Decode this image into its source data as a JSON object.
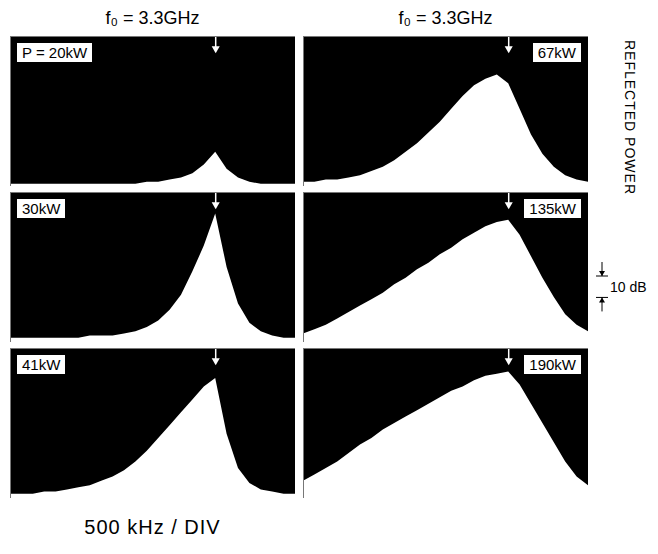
{
  "column_titles": [
    "f₀ = 3.3GHz",
    "f₀ = 3.3GHz"
  ],
  "ylabel": "REFLECTED POWER",
  "scale_bar": {
    "value": 10,
    "label": "10 dB"
  },
  "xlabel": "500 kHz / DIV",
  "chart_data": [
    {
      "type": "area",
      "title": "P = 20kW",
      "color": "#ffffff",
      "tick_labels": false,
      "xlim": [
        -3600,
        1400
      ],
      "ylim": [
        0,
        70
      ],
      "x": [
        -3600,
        -3400,
        -3200,
        -3000,
        -2800,
        -2600,
        -2400,
        -2200,
        -2000,
        -1800,
        -1600,
        -1400,
        -1200,
        -1000,
        -800,
        -600,
        -400,
        -200,
        0,
        200,
        400,
        600,
        800,
        1000,
        1200,
        1400
      ],
      "values": [
        1,
        1,
        1,
        1,
        1,
        1,
        1,
        1,
        1,
        1,
        1,
        1,
        2,
        2,
        3,
        4,
        6,
        10,
        16,
        8,
        4,
        2,
        1,
        1,
        1,
        1
      ]
    },
    {
      "type": "area",
      "title": "30kW",
      "color": "#ffffff",
      "tick_labels": false,
      "xlim": [
        -3600,
        1400
      ],
      "ylim": [
        0,
        70
      ],
      "x": [
        -3600,
        -3400,
        -3200,
        -3000,
        -2800,
        -2600,
        -2400,
        -2200,
        -2000,
        -1800,
        -1600,
        -1400,
        -1200,
        -1000,
        -800,
        -600,
        -400,
        -200,
        0,
        200,
        400,
        600,
        800,
        1000,
        1200,
        1400
      ],
      "values": [
        2,
        2,
        2,
        2,
        2,
        2,
        2,
        3,
        3,
        3,
        4,
        5,
        7,
        10,
        15,
        22,
        33,
        45,
        60,
        35,
        18,
        9,
        5,
        3,
        2,
        2
      ]
    },
    {
      "type": "area",
      "title": "41kW",
      "color": "#ffffff",
      "tick_labels": false,
      "xlim": [
        -3600,
        1400
      ],
      "ylim": [
        0,
        70
      ],
      "x": [
        -3600,
        -3400,
        -3200,
        -3000,
        -2800,
        -2600,
        -2400,
        -2200,
        -2000,
        -1800,
        -1600,
        -1400,
        -1200,
        -1000,
        -800,
        -600,
        -400,
        -200,
        0,
        200,
        400,
        600,
        800,
        1000,
        1200,
        1400
      ],
      "values": [
        2,
        2,
        2,
        3,
        3,
        4,
        5,
        6,
        8,
        10,
        13,
        17,
        22,
        28,
        34,
        40,
        46,
        52,
        56,
        30,
        14,
        7,
        4,
        3,
        2,
        2
      ]
    },
    {
      "type": "area",
      "title": "67kW",
      "color": "#ffffff",
      "tick_labels": false,
      "xlim": [
        -3600,
        1400
      ],
      "ylim": [
        0,
        70
      ],
      "x": [
        -3600,
        -3400,
        -3200,
        -3000,
        -2800,
        -2600,
        -2400,
        -2200,
        -2000,
        -1800,
        -1600,
        -1400,
        -1200,
        -1000,
        -800,
        -600,
        -400,
        -200,
        0,
        200,
        400,
        600,
        800,
        1000,
        1200,
        1400
      ],
      "values": [
        2,
        2,
        3,
        3,
        4,
        5,
        7,
        9,
        12,
        16,
        20,
        25,
        30,
        36,
        42,
        47,
        50,
        52,
        48,
        36,
        24,
        15,
        9,
        5,
        3,
        2
      ]
    },
    {
      "type": "area",
      "title": "135kW",
      "color": "#ffffff",
      "tick_labels": false,
      "xlim": [
        -3600,
        1400
      ],
      "ylim": [
        0,
        70
      ],
      "x": [
        -3600,
        -3400,
        -3200,
        -3000,
        -2800,
        -2600,
        -2400,
        -2200,
        -2000,
        -1800,
        -1600,
        -1400,
        -1200,
        -1000,
        -800,
        -600,
        -400,
        -200,
        0,
        200,
        400,
        600,
        800,
        1000,
        1200,
        1400
      ],
      "values": [
        4,
        6,
        8,
        11,
        14,
        17,
        20,
        23,
        27,
        30,
        34,
        37,
        41,
        44,
        48,
        51,
        54,
        56,
        57,
        50,
        40,
        30,
        21,
        13,
        8,
        5
      ]
    },
    {
      "type": "area",
      "title": "190kW",
      "color": "#ffffff",
      "tick_labels": false,
      "xlim": [
        -3600,
        1400
      ],
      "ylim": [
        0,
        70
      ],
      "x": [
        -3600,
        -3400,
        -3200,
        -3000,
        -2800,
        -2600,
        -2400,
        -2200,
        -2000,
        -1800,
        -1600,
        -1400,
        -1200,
        -1000,
        -800,
        -600,
        -400,
        -200,
        0,
        200,
        400,
        600,
        800,
        1000,
        1200,
        1400
      ],
      "values": [
        8,
        11,
        14,
        17,
        21,
        25,
        28,
        32,
        35,
        38,
        41,
        44,
        47,
        50,
        52,
        55,
        57,
        58,
        59,
        53,
        44,
        35,
        26,
        17,
        10,
        6
      ]
    }
  ]
}
